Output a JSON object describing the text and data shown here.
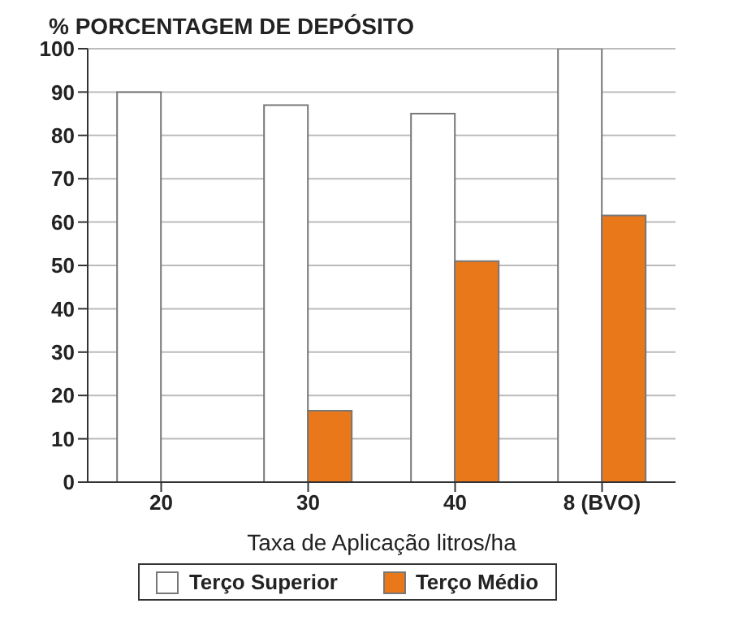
{
  "chart_data": {
    "type": "bar",
    "title": "% PORCENTAGEM DE DEPÓSITO",
    "xlabel": "Taxa de Aplicação litros/ha",
    "categories": [
      "20",
      "30",
      "40",
      "8 (BVO)"
    ],
    "series": [
      {
        "name": "Terço Superior",
        "color": "#ffffff",
        "values": [
          90,
          87,
          85,
          100
        ]
      },
      {
        "name": "Terço Médio",
        "color": "#e8781a",
        "values": [
          null,
          16.5,
          51,
          61.5
        ]
      }
    ],
    "ylim": [
      0,
      100
    ],
    "yticks": [
      0,
      10,
      20,
      30,
      40,
      50,
      60,
      70,
      80,
      90,
      100
    ],
    "grid": "y",
    "legend": "bottom"
  }
}
